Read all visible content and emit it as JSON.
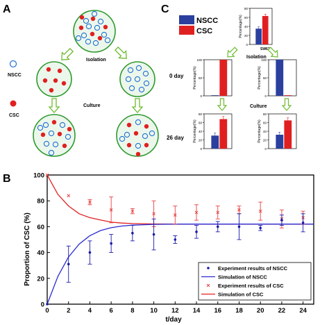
{
  "panels": {
    "a": "A",
    "b": "B",
    "c": "C"
  },
  "panel_a": {
    "legend": {
      "nscc": "NSCC",
      "csc": "CSC"
    },
    "steps": {
      "isolation": "Isolation",
      "culture": "Culture"
    },
    "colors": {
      "dish_fill": "#ecf7ec",
      "dish_border": "#2e9a2e",
      "nscc": "#1f6fd6",
      "csc": "#e02020",
      "arrow": "#8fd14f"
    }
  },
  "panel_c": {
    "legend": {
      "nscc": "NSCC",
      "csc": "CSC"
    },
    "ylabel": "Percentage(%)",
    "cell_line": "SW620",
    "steps": {
      "isolation": "Isolation",
      "culture": "Culture"
    },
    "time_labels": {
      "day0": "0 day",
      "day26": "26 day"
    },
    "colors": {
      "nscc": "#2b3f9e",
      "csc": "#e02020"
    },
    "charts": [
      {
        "name": "top",
        "nscc": 35,
        "csc": 63,
        "ticks": [
          "0",
          "20",
          "40",
          "60",
          "80"
        ],
        "ymax": 80,
        "err": [
          4,
          4
        ]
      },
      {
        "name": "left-0",
        "nscc": 0,
        "csc": 100,
        "ticks": [
          "0",
          "50",
          "100"
        ],
        "ymax": 100,
        "err": [
          0,
          0
        ]
      },
      {
        "name": "right-0",
        "nscc": 100,
        "csc": 0,
        "ticks": [
          "0",
          "50",
          "100"
        ],
        "ymax": 100,
        "err": [
          0,
          0
        ]
      },
      {
        "name": "left-26",
        "nscc": 30,
        "csc": 68,
        "ticks": [
          "0",
          "20",
          "40",
          "60",
          "80"
        ],
        "ymax": 80,
        "err": [
          6,
          6
        ]
      },
      {
        "name": "right-26",
        "nscc": 32,
        "csc": 65,
        "ticks": [
          "0",
          "20",
          "40",
          "60",
          "80"
        ],
        "ymax": 80,
        "err": [
          6,
          6
        ]
      }
    ]
  },
  "chart_data": {
    "type": "scatter",
    "xlabel": "t/day",
    "ylabel": "Proportion of CSC (%)",
    "xlim": [
      0,
      25
    ],
    "ylim": [
      0,
      100
    ],
    "xticks": [
      "0",
      "2",
      "4",
      "6",
      "8",
      "10",
      "12",
      "14",
      "16",
      "18",
      "20",
      "22",
      "24"
    ],
    "yticks": [
      "0",
      "20",
      "40",
      "60",
      "80",
      "100"
    ],
    "legend_position": "bottom-right",
    "legend": [
      "Experiment results of NSCC",
      "Simulation of NSCC",
      "Experiment results of CSC",
      "Simulation of CSC"
    ],
    "series": [
      {
        "name": "Experiment results of NSCC",
        "color": "#1a1aa8",
        "x": [
          0,
          2,
          4,
          6,
          8,
          10,
          12,
          14,
          16,
          18,
          20,
          22,
          24
        ],
        "y": [
          0,
          31,
          40,
          47,
          55,
          54,
          50,
          56,
          60,
          60,
          59,
          65,
          63
        ],
        "err": [
          0,
          14,
          9,
          7,
          6,
          12,
          3,
          5,
          4,
          10,
          2,
          4,
          7
        ]
      },
      {
        "name": "Experiment results of CSC",
        "color": "#e84040",
        "x": [
          0,
          2,
          4,
          6,
          8,
          10,
          12,
          14,
          16,
          18,
          20,
          22,
          24
        ],
        "y": [
          100,
          84,
          79,
          73,
          72,
          70,
          69,
          71,
          71,
          73,
          72,
          66,
          67
        ],
        "err": [
          0,
          0,
          2,
          10,
          2,
          10,
          7,
          6,
          5,
          3,
          7,
          7,
          5
        ]
      },
      {
        "name": "Simulation of NSCC",
        "color": "#2a2ad4",
        "type": "line",
        "x": [
          0,
          1,
          2,
          3,
          4,
          5,
          6,
          7,
          8,
          10,
          12,
          16,
          20,
          25
        ],
        "y": [
          0,
          21.5,
          36.5,
          46.5,
          53,
          57,
          59.2,
          60.5,
          61.2,
          61.8,
          62,
          62,
          62,
          62
        ]
      },
      {
        "name": "Simulation of CSC",
        "color": "#e02020",
        "type": "line",
        "x": [
          0,
          1,
          2,
          3,
          4,
          5,
          6,
          7,
          8,
          10,
          12,
          16,
          20,
          25
        ],
        "y": [
          100,
          85,
          76,
          70,
          67,
          65.2,
          63.5,
          62.8,
          62.4,
          62.1,
          62,
          62,
          62,
          62
        ]
      }
    ]
  }
}
